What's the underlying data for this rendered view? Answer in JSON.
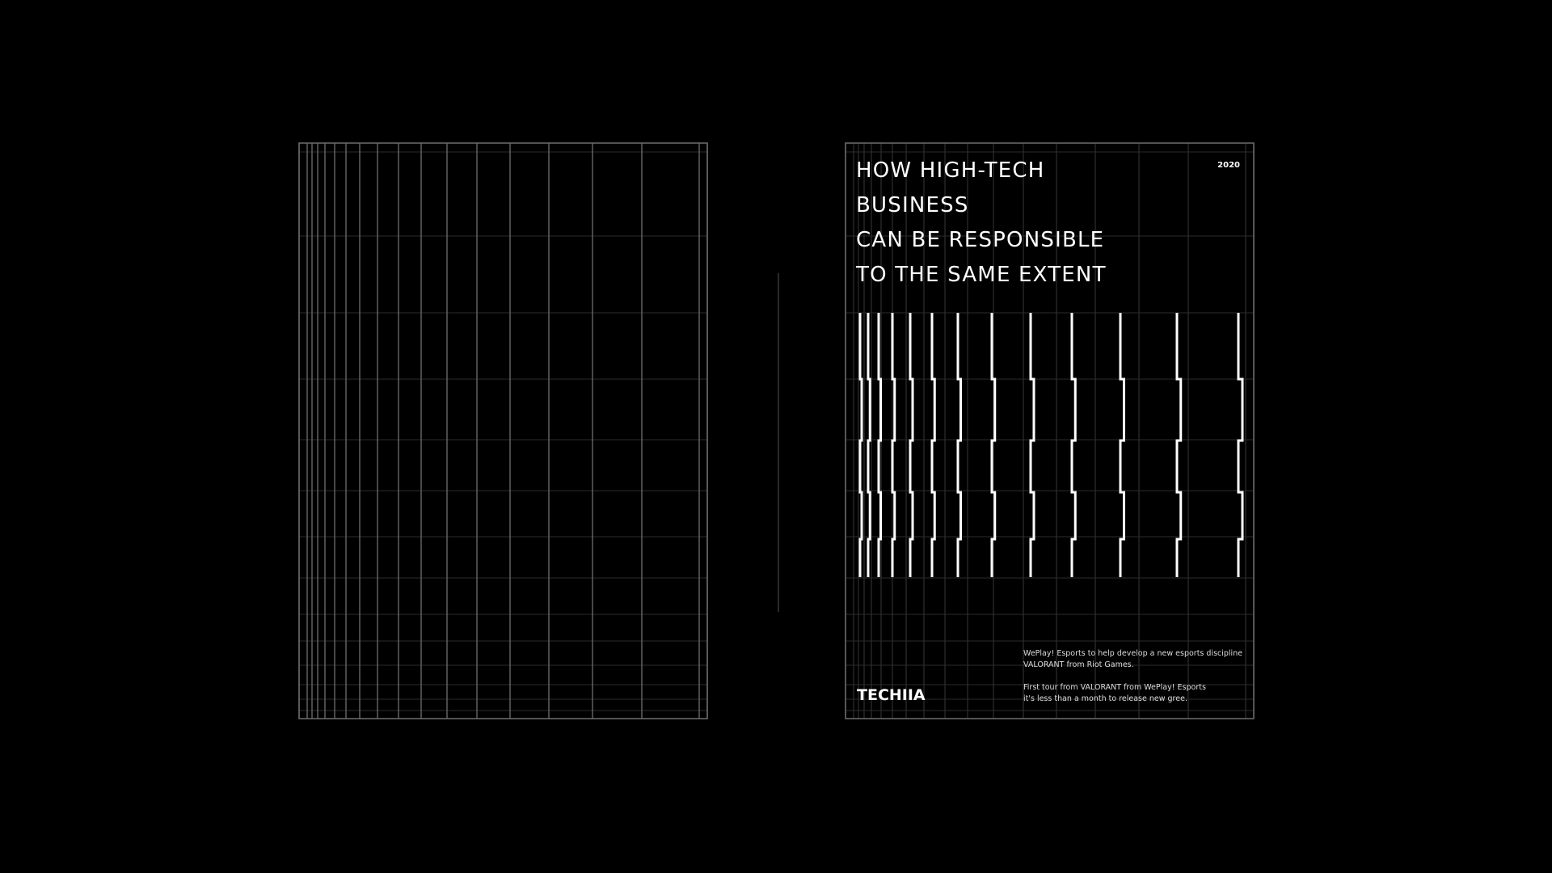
{
  "poster": {
    "year": "2020",
    "title_lines": [
      "HOW HIGH-TECH",
      "BUSINESS",
      "CAN BE RESPONSIBLE",
      "TO THE SAME EXTENT"
    ],
    "logo": "TECHIIA",
    "paragraph_1": [
      "WePlay! Esports to help develop a new esports discipline",
      "VALORANT from Riot Games."
    ],
    "paragraph_2": [
      "First tour from VALORANT from WePlay! Esports",
      "it's less than a month to release new gree."
    ]
  },
  "colors": {
    "background": "#000000",
    "grid_major": "#6e6e6e",
    "grid_minor": "#1e1e1e",
    "bars": "#ffffff",
    "divider": "#2a2a2a"
  }
}
